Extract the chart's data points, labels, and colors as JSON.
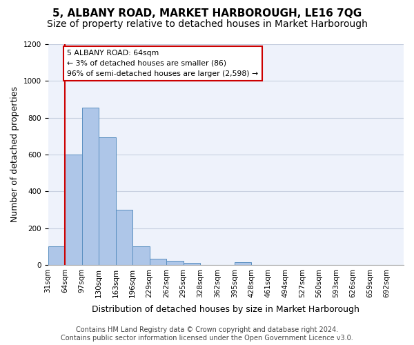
{
  "title": "5, ALBANY ROAD, MARKET HARBOROUGH, LE16 7QG",
  "subtitle": "Size of property relative to detached houses in Market Harborough",
  "xlabel": "Distribution of detached houses by size in Market Harborough",
  "ylabel": "Number of detached properties",
  "bar_color": "#aec6e8",
  "bar_edge_color": "#5a8fc0",
  "grid_color": "#c8d0e0",
  "background_color": "#eef2fb",
  "annotation_line_color": "#cc0000",
  "annotation_text": "5 ALBANY ROAD: 64sqm\n← 3% of detached houses are smaller (86)\n96% of semi-detached houses are larger (2,598) →",
  "property_size_sqm": 64,
  "bin_left_edges": [
    31,
    64,
    97,
    130,
    163,
    196,
    229,
    262,
    295,
    328,
    362,
    395,
    428,
    461,
    494,
    527,
    560,
    593,
    626,
    659
  ],
  "bin_labels": [
    "31sqm",
    "64sqm",
    "97sqm",
    "130sqm",
    "163sqm",
    "196sqm",
    "229sqm",
    "262sqm",
    "295sqm",
    "328sqm",
    "362sqm",
    "395sqm",
    "428sqm",
    "461sqm",
    "494sqm",
    "527sqm",
    "560sqm",
    "593sqm",
    "626sqm",
    "659sqm",
    "692sqm"
  ],
  "all_tick_positions": [
    31,
    64,
    97,
    130,
    163,
    196,
    229,
    262,
    295,
    328,
    362,
    395,
    428,
    461,
    494,
    527,
    560,
    593,
    626,
    659,
    692
  ],
  "bar_heights": [
    100,
    600,
    855,
    695,
    300,
    100,
    32,
    22,
    12,
    0,
    0,
    15,
    0,
    0,
    0,
    0,
    0,
    0,
    0,
    0
  ],
  "bin_width": 33,
  "ylim": [
    0,
    1200
  ],
  "yticks": [
    0,
    200,
    400,
    600,
    800,
    1000,
    1200
  ],
  "footer_text": "Contains HM Land Registry data © Crown copyright and database right 2024.\nContains public sector information licensed under the Open Government Licence v3.0.",
  "title_fontsize": 11,
  "subtitle_fontsize": 10,
  "xlabel_fontsize": 9,
  "ylabel_fontsize": 9,
  "tick_fontsize": 7.5,
  "footer_fontsize": 7
}
